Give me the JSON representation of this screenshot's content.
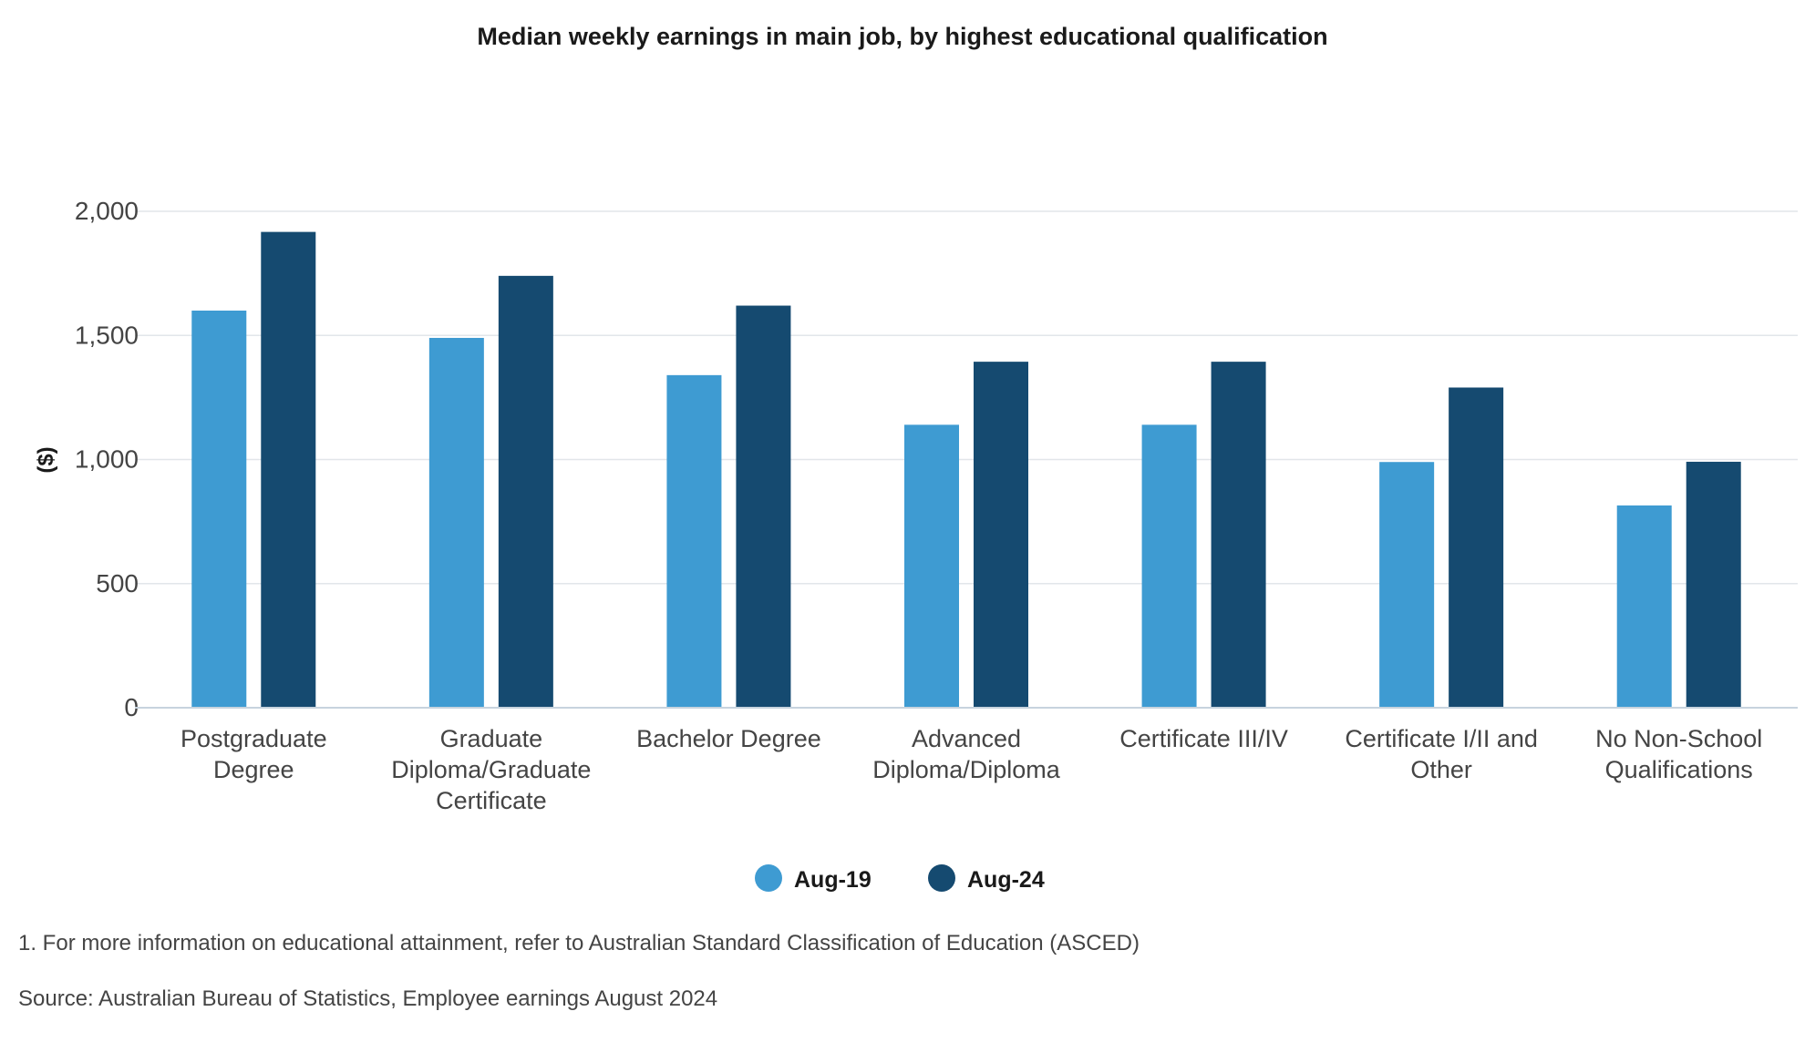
{
  "chart_data": {
    "type": "bar",
    "title": "Median weekly earnings in main job, by highest educational qualification",
    "ylabel": "($)",
    "xlabel": "",
    "ylim": [
      0,
      2000
    ],
    "yticks": [
      0,
      500,
      1000,
      1500,
      2000
    ],
    "ytick_labels": [
      "0",
      "500",
      "1,000",
      "1,500",
      "2,000"
    ],
    "grid": true,
    "legend_position": "bottom",
    "categories": [
      [
        "Postgraduate",
        "Degree"
      ],
      [
        "Graduate",
        "Diploma/Graduate",
        "Certificate"
      ],
      [
        "Bachelor Degree"
      ],
      [
        "Advanced",
        "Diploma/Diploma"
      ],
      [
        "Certificate III/IV"
      ],
      [
        "Certificate I/II and",
        "Other"
      ],
      [
        "No Non-School",
        "Qualifications"
      ]
    ],
    "series": [
      {
        "name": "Aug-19",
        "color": "#3e9bd2",
        "values": [
          1600,
          1490,
          1340,
          1140,
          1140,
          990,
          815
        ]
      },
      {
        "name": "Aug-24",
        "color": "#154a70",
        "values": [
          1917,
          1740,
          1620,
          1394,
          1394,
          1290,
          991
        ]
      }
    ]
  },
  "notes": {
    "footnote": "1. For more information on educational attainment, refer to Australian Standard Classification of Education (ASCED)",
    "source": "Source: Australian Bureau of Statistics, Employee earnings August 2024"
  }
}
